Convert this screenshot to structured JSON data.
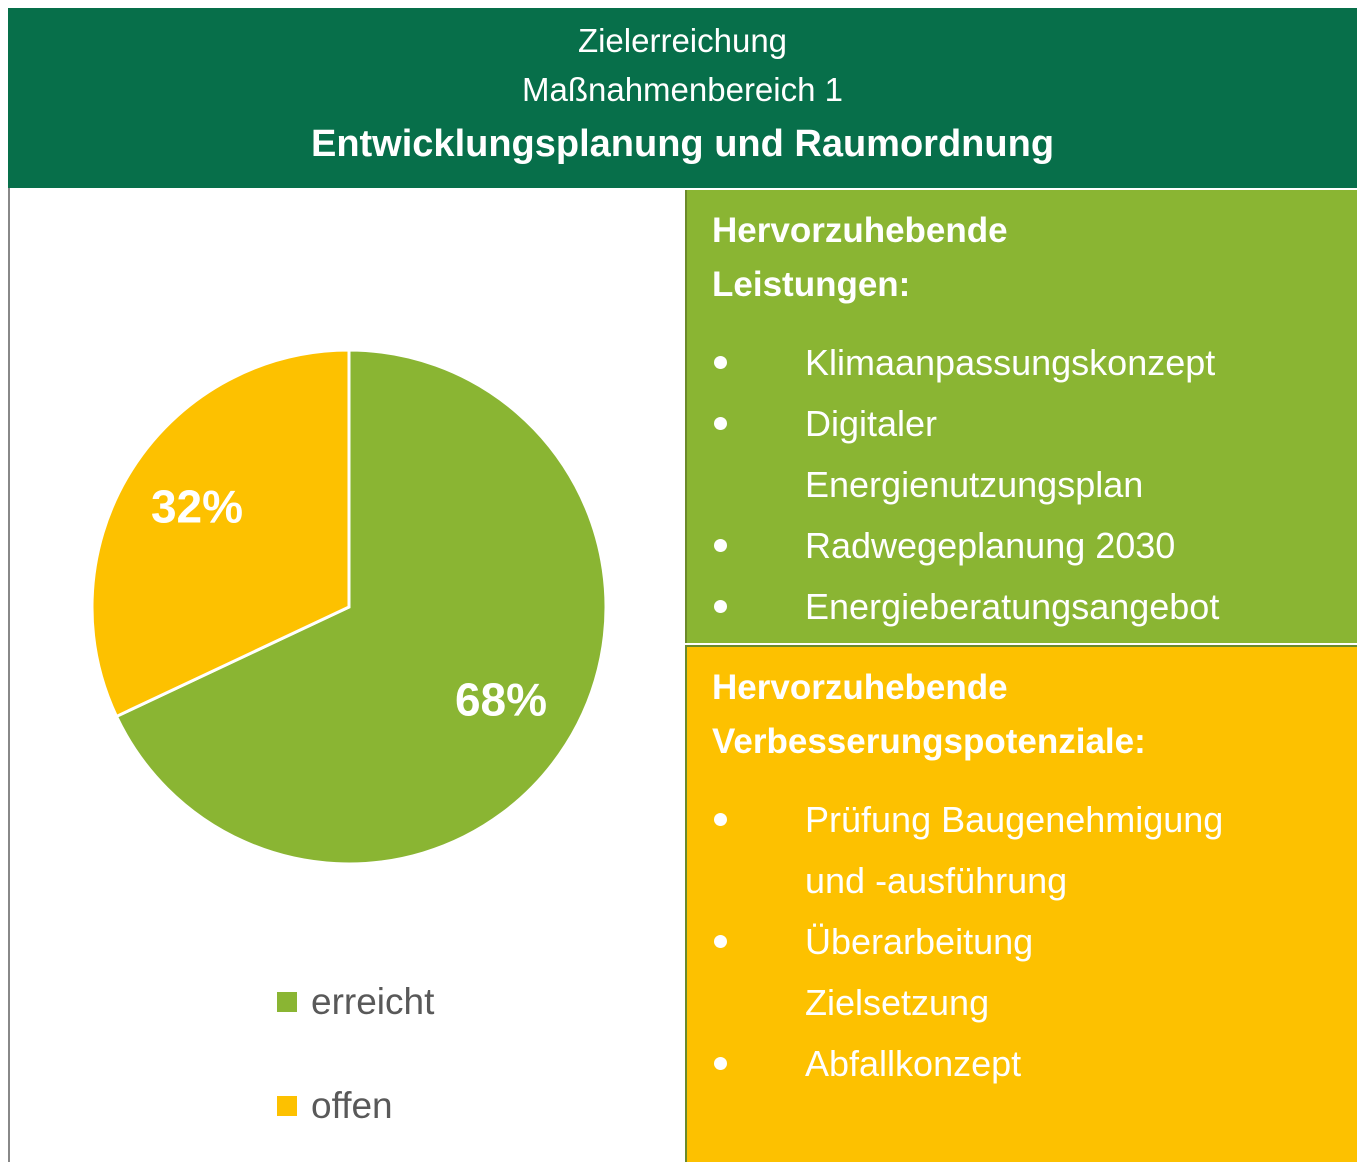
{
  "header": {
    "title": "Zielerreichung",
    "subtitle": "Maßnahmenbereich 1",
    "heading": "Entwicklungsplanung und Raumordnung"
  },
  "chart_data": {
    "type": "pie",
    "categories": [
      "erreicht",
      "offen"
    ],
    "values": [
      68,
      32
    ],
    "value_labels": [
      "68%",
      "32%"
    ],
    "colors": [
      "#8ab533",
      "#fdc100"
    ]
  },
  "panels": [
    {
      "title": [
        "Hervorzuhebende",
        "Leistungen:"
      ],
      "items": [
        [
          "Klimaanpassungskonzept"
        ],
        [
          "Digitaler",
          "Energienutzungsplan"
        ],
        [
          "Radwegeplanung 2030"
        ],
        [
          "Energieberatungsangebot"
        ]
      ]
    },
    {
      "title": [
        "Hervorzuhebende",
        "Verbesserungspotenziale:"
      ],
      "items": [
        [
          "Prüfung Baugenehmigung",
          "und -ausführung"
        ],
        [
          "Überarbeitung",
          "Zielsetzung"
        ],
        [
          "Abfallkonzept"
        ]
      ]
    }
  ]
}
